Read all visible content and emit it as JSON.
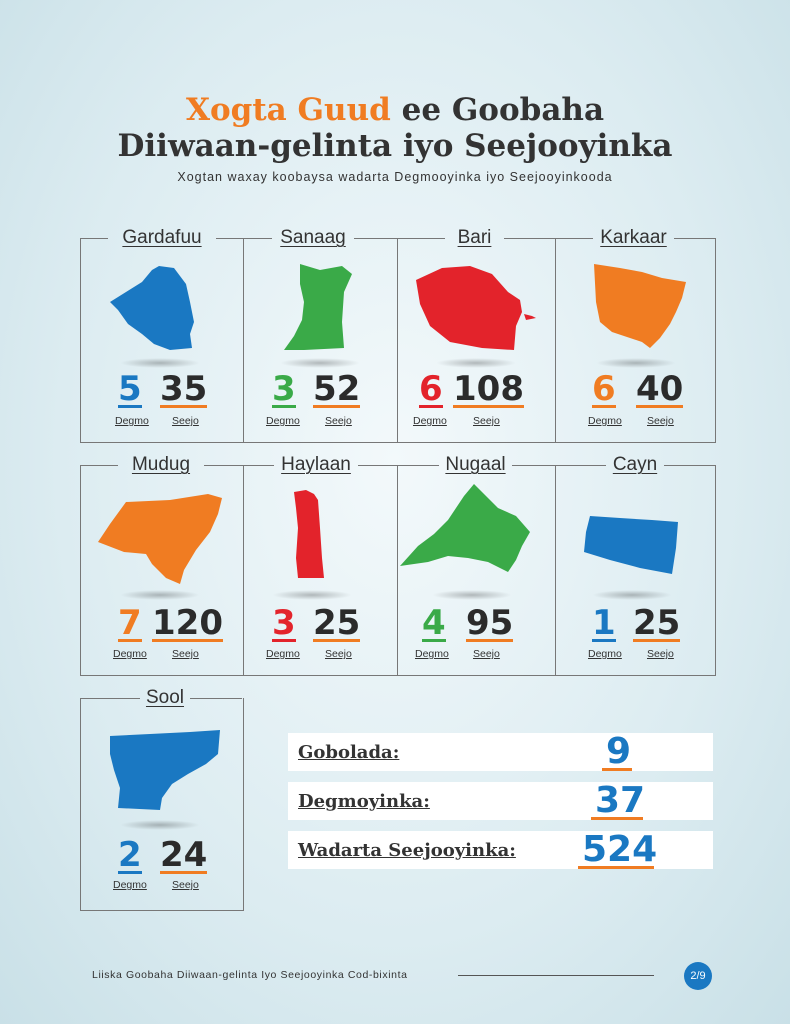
{
  "title": {
    "accent": "Xogta Guud",
    "line1_rest": " ee Goobaha",
    "line2": "Diiwaan-gelinta iyo Seejooyinka"
  },
  "subtitle": "Xogtan waxay koobaysa wadarta Degmooyinka iyo Seejooyinkooda",
  "labels": {
    "district": "Degmo",
    "station": "Seejo"
  },
  "colors": {
    "blue": "#1a78c2",
    "green": "#3aaa48",
    "red": "#e3232b",
    "orange": "#f07c22",
    "dark": "#2b2b2b"
  },
  "regions": [
    {
      "name": "Gardafuu",
      "districts": "5",
      "stations": "35",
      "color": "#1a78c2"
    },
    {
      "name": "Sanaag",
      "districts": "3",
      "stations": "52",
      "color": "#3aaa48"
    },
    {
      "name": "Bari",
      "districts": "6",
      "stations": "108",
      "color": "#e3232b"
    },
    {
      "name": "Karkaar",
      "districts": "6",
      "stations": "40",
      "color": "#f07c22"
    },
    {
      "name": "Mudug",
      "districts": "7",
      "stations": "120",
      "color": "#f07c22"
    },
    {
      "name": "Haylaan",
      "districts": "3",
      "stations": "25",
      "color": "#e3232b"
    },
    {
      "name": "Nugaal",
      "districts": "4",
      "stations": "95",
      "color": "#3aaa48"
    },
    {
      "name": "Cayn",
      "districts": "1",
      "stations": "25",
      "color": "#1a78c2"
    },
    {
      "name": "Sool",
      "districts": "2",
      "stations": "24",
      "color": "#1a78c2"
    }
  ],
  "totals": [
    {
      "label": "Gobolada:",
      "value": "9"
    },
    {
      "label": "Degmoyinka:",
      "value": "37"
    },
    {
      "label": "Wadarta Seejooyinka:",
      "value": "524"
    }
  ],
  "footer": {
    "text": "Liiska Goobaha Diiwaan-gelinta Iyo Seejooyinka Cod-bixinta",
    "page": "2/9"
  }
}
